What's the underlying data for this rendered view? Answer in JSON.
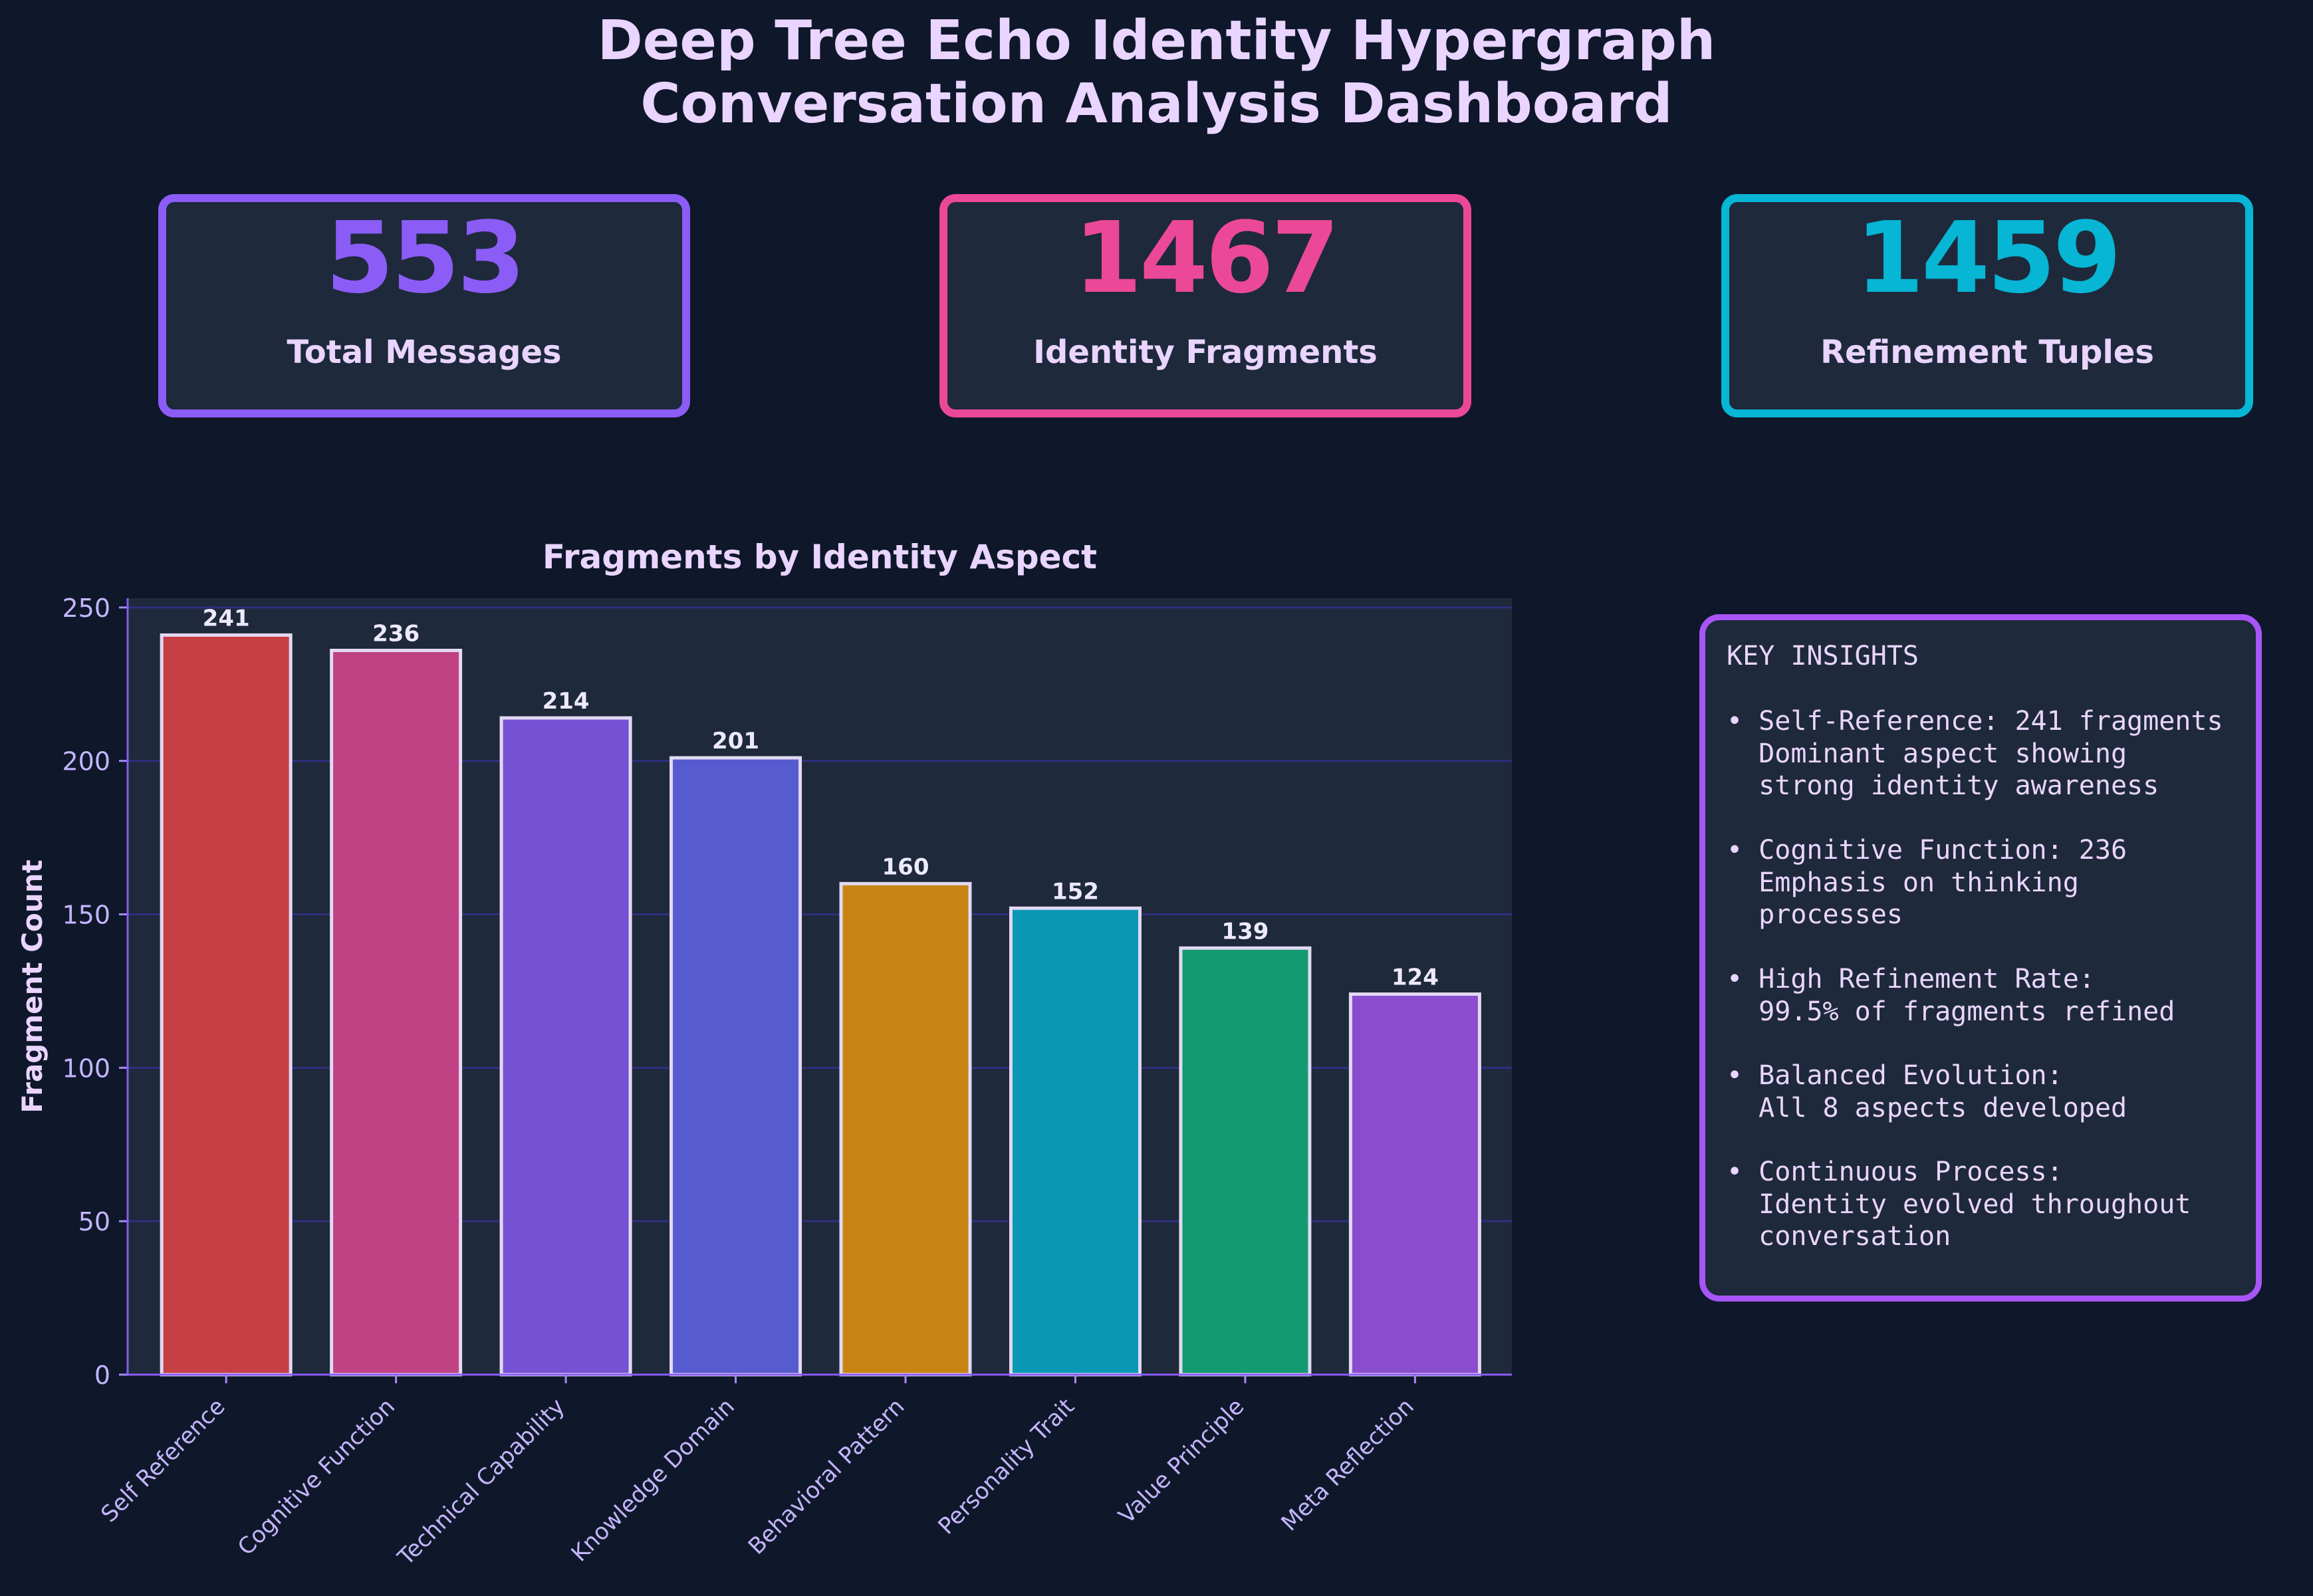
{
  "title_line1": "Deep Tree Echo Identity Hypergraph",
  "title_line2": "Conversation Analysis Dashboard",
  "stats": [
    {
      "value": "553",
      "label": "Total Messages",
      "color": "#8b5cf6"
    },
    {
      "value": "1467",
      "label": "Identity Fragments",
      "color": "#ec4899"
    },
    {
      "value": "1459",
      "label": "Refinement Tuples",
      "color": "#06b6d4"
    }
  ],
  "insights": {
    "title": "KEY INSIGHTS",
    "items": [
      {
        "text": "• Self-Reference: 241 fragments\n  Dominant aspect showing\n  strong identity awareness"
      },
      {
        "text": "• Cognitive Function: 236\n  Emphasis on thinking\n  processes"
      },
      {
        "text": "• High Refinement Rate:\n  99.5% of fragments refined"
      },
      {
        "text": "• Balanced Evolution:\n  All 8 aspects developed"
      },
      {
        "text": "• Continuous Process:\n  Identity evolved throughout\n  conversation"
      }
    ]
  },
  "chart_data": {
    "type": "bar",
    "title": "Fragments by Identity Aspect",
    "xlabel": "",
    "ylabel": "Fragment Count",
    "categories": [
      "Self Reference",
      "Cognitive Function",
      "Technical Capability",
      "Knowledge Domain",
      "Behavioral Pattern",
      "Personality Trait",
      "Value Principle",
      "Meta Reflection"
    ],
    "values": [
      241,
      236,
      214,
      201,
      160,
      152,
      139,
      124
    ],
    "colors": [
      "#c53f45",
      "#c04284",
      "#7552d4",
      "#565bcf",
      "#c88514",
      "#0a99b4",
      "#139a71",
      "#8a4dce"
    ],
    "yticks": [
      0,
      50,
      100,
      150,
      200,
      250
    ],
    "ylim": [
      0,
      253
    ],
    "grid": true,
    "data_labels": true
  }
}
